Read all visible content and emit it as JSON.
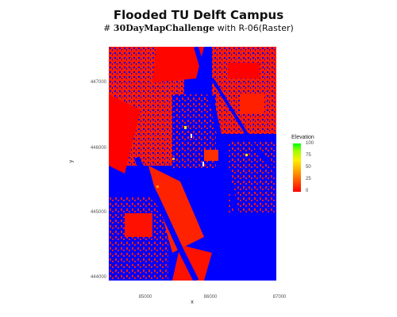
{
  "title": "Flooded TU Delft Campus",
  "subtitle": {
    "hashtag_prefix": "# ",
    "hashtag": "30DayMapChallenge",
    "suffix": " with R-06(Raster)"
  },
  "axes": {
    "xlabel": "x",
    "ylabel": "y",
    "xticks": [
      "85000",
      "86000",
      "87000"
    ],
    "yticks": [
      "447000",
      "446000",
      "445000",
      "444000"
    ]
  },
  "legend": {
    "title": "Elevation",
    "ticks": [
      "100",
      "75",
      "50",
      "25",
      "0"
    ],
    "colors": [
      "#ff0000",
      "#ff9900",
      "#ffee00",
      "#99ff00",
      "#00ff00"
    ],
    "flood_color": "#0000ff"
  },
  "map": {
    "type": "raster",
    "description_colors": {
      "flooded": "#0000ff",
      "low": "#ff0000",
      "high": "#00ff00"
    }
  }
}
